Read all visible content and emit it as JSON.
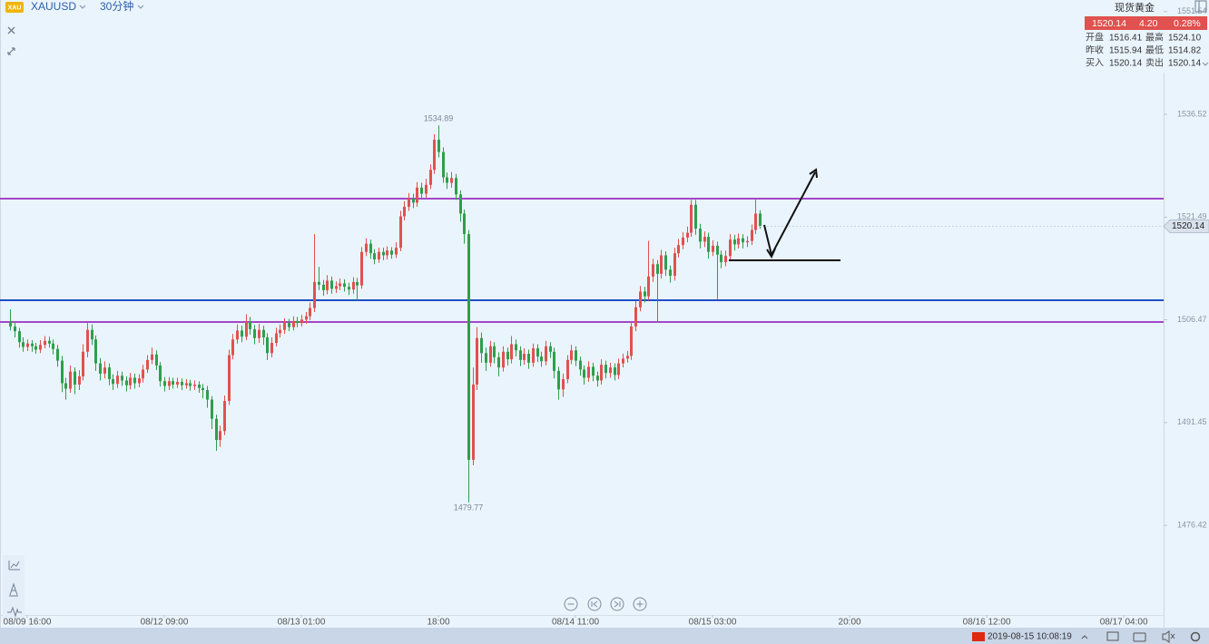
{
  "header": {
    "symbol": "XAUUSD",
    "interval": "30分钟"
  },
  "quote": {
    "name": "现货黄金",
    "price": "1520.14",
    "change": "4.20",
    "change_pct": "0.28%",
    "rows": [
      [
        "开盘",
        "1516.41",
        "最高",
        "1524.10"
      ],
      [
        "昨收",
        "1515.94",
        "最低",
        "1514.82"
      ],
      [
        "买入",
        "1520.14",
        "卖出",
        "1520.14"
      ]
    ]
  },
  "status": {
    "datetime": "2019-08-15 10:08:19"
  },
  "chart_data": {
    "type": "candlestick",
    "up_color": "#e0514f",
    "down_color": "#2e9f4c",
    "open": [
      1506.0,
      1505.5,
      1504.8,
      1503.2,
      1502.5,
      1503.0,
      1502.6,
      1502.1,
      1502.8,
      1503.4,
      1503.0,
      1502.2,
      1500.5,
      1497.2,
      1496.4,
      1498.9,
      1497.0,
      1498.2,
      1501.8,
      1505.0,
      1503.6,
      1500.1,
      1498.6,
      1499.5,
      1497.8,
      1497.1,
      1498.3,
      1497.6,
      1496.9,
      1498.0,
      1497.2,
      1497.9,
      1499.2,
      1500.6,
      1501.4,
      1499.8,
      1497.5,
      1496.8,
      1497.5,
      1497.0,
      1497.4,
      1496.9,
      1497.2,
      1496.8,
      1497.0,
      1496.5,
      1496.2,
      1494.8,
      1492.0,
      1488.9,
      1490.2,
      1494.6,
      1501.3,
      1503.6,
      1504.9,
      1504.0,
      1506.2,
      1505.1,
      1503.8,
      1505.0,
      1503.9,
      1501.6,
      1503.1,
      1504.5,
      1505.0,
      1506.0,
      1505.4,
      1506.3,
      1506.0,
      1506.5,
      1507.0,
      1508.2,
      1512.0,
      1511.6,
      1510.8,
      1512.2,
      1511.0,
      1511.4,
      1511.8,
      1511.3,
      1510.9,
      1512.0,
      1511.5,
      1516.4,
      1517.6,
      1516.2,
      1515.3,
      1516.4,
      1515.9,
      1516.6,
      1516.0,
      1517.0,
      1521.6,
      1523.0,
      1524.2,
      1523.6,
      1525.8,
      1524.9,
      1526.2,
      1528.4,
      1532.8,
      1531.0,
      1527.3,
      1526.5,
      1527.2,
      1524.8,
      1522.0,
      1519.0,
      1486.0,
      1497.0,
      1503.8,
      1501.6,
      1500.2,
      1502.6,
      1501.0,
      1499.5,
      1501.8,
      1500.7,
      1502.9,
      1502.0,
      1500.6,
      1501.5,
      1500.2,
      1502.3,
      1501.1,
      1500.4,
      1502.6,
      1501.8,
      1499.0,
      1496.3,
      1497.8,
      1500.6,
      1502.0,
      1500.5,
      1499.2,
      1498.0,
      1499.6,
      1498.3,
      1497.6,
      1499.9,
      1498.7,
      1499.5,
      1498.4,
      1500.1,
      1500.8,
      1501.2,
      1505.5,
      1508.3,
      1510.6,
      1509.9,
      1512.8,
      1514.6,
      1513.2,
      1515.9,
      1513.8,
      1512.9,
      1516.2,
      1517.4,
      1518.5,
      1519.2,
      1523.3,
      1519.8,
      1517.9,
      1518.6,
      1516.4,
      1517.3,
      1516.0,
      1514.9,
      1515.8,
      1518.2,
      1517.5,
      1518.4,
      1517.8,
      1518.0,
      1519.6,
      1522.0
    ],
    "high": [
      1508.0,
      1506.1,
      1505.3,
      1503.9,
      1503.6,
      1503.5,
      1503.1,
      1503.5,
      1504.1,
      1504.0,
      1503.6,
      1502.8,
      1501.2,
      1498.0,
      1499.8,
      1499.5,
      1499.1,
      1502.9,
      1506.0,
      1505.8,
      1504.2,
      1500.9,
      1500.4,
      1500.1,
      1498.5,
      1499.0,
      1498.9,
      1498.2,
      1498.7,
      1498.6,
      1498.5,
      1499.9,
      1501.3,
      1502.4,
      1502.0,
      1500.3,
      1498.1,
      1498.1,
      1498.0,
      1498.0,
      1497.9,
      1497.8,
      1497.7,
      1497.6,
      1497.5,
      1497.1,
      1496.8,
      1495.3,
      1492.6,
      1491.0,
      1495.4,
      1502.1,
      1504.4,
      1505.8,
      1505.6,
      1507.3,
      1506.9,
      1505.7,
      1505.9,
      1505.6,
      1504.5,
      1503.9,
      1505.3,
      1505.8,
      1506.7,
      1506.6,
      1507.0,
      1506.9,
      1507.2,
      1507.6,
      1509.0,
      1519.0,
      1514.2,
      1512.3,
      1513.0,
      1512.8,
      1512.1,
      1512.5,
      1512.4,
      1511.9,
      1512.7,
      1512.6,
      1517.1,
      1518.4,
      1518.2,
      1516.8,
      1517.0,
      1517.0,
      1517.2,
      1517.1,
      1517.8,
      1522.4,
      1523.8,
      1525.0,
      1524.9,
      1526.6,
      1526.5,
      1527.1,
      1529.2,
      1533.6,
      1534.89,
      1531.7,
      1528.0,
      1528.1,
      1527.8,
      1525.4,
      1522.6,
      1519.6,
      1499.5,
      1505.4,
      1504.6,
      1502.4,
      1503.4,
      1503.2,
      1501.7,
      1502.6,
      1502.4,
      1504.1,
      1503.6,
      1502.6,
      1502.3,
      1502.1,
      1503.0,
      1502.9,
      1501.8,
      1503.4,
      1503.2,
      1502.4,
      1499.6,
      1498.6,
      1501.3,
      1502.8,
      1502.6,
      1501.1,
      1499.8,
      1500.4,
      1500.2,
      1498.9,
      1500.7,
      1500.5,
      1500.2,
      1500.1,
      1500.8,
      1501.5,
      1501.9,
      1506.3,
      1509.2,
      1511.4,
      1511.3,
      1518.0,
      1515.4,
      1515.2,
      1516.7,
      1516.5,
      1514.4,
      1517.0,
      1518.3,
      1519.3,
      1520.1,
      1524.0,
      1524.0,
      1520.5,
      1519.4,
      1519.2,
      1518.1,
      1517.9,
      1516.6,
      1516.6,
      1519.0,
      1518.9,
      1519.1,
      1519.0,
      1518.7,
      1520.4,
      1524.1,
      1522.5
    ],
    "low": [
      1504.9,
      1503.9,
      1502.4,
      1501.8,
      1501.9,
      1501.8,
      1501.5,
      1501.6,
      1502.3,
      1502.4,
      1501.4,
      1499.6,
      1495.9,
      1494.8,
      1495.8,
      1495.6,
      1496.2,
      1497.6,
      1501.0,
      1502.8,
      1499.0,
      1497.6,
      1497.9,
      1496.9,
      1496.2,
      1496.5,
      1496.8,
      1496.0,
      1496.3,
      1496.4,
      1496.6,
      1497.3,
      1498.7,
      1500.0,
      1499.1,
      1496.7,
      1496.0,
      1496.2,
      1496.4,
      1496.5,
      1496.2,
      1496.4,
      1496.1,
      1496.2,
      1495.8,
      1495.0,
      1493.6,
      1490.5,
      1487.3,
      1487.9,
      1489.6,
      1494.0,
      1500.7,
      1503.0,
      1503.2,
      1503.5,
      1504.3,
      1502.9,
      1503.1,
      1502.8,
      1500.6,
      1501.0,
      1502.6,
      1503.9,
      1504.4,
      1504.8,
      1504.9,
      1505.4,
      1505.5,
      1505.9,
      1506.4,
      1507.6,
      1510.8,
      1510.0,
      1510.2,
      1510.3,
      1510.4,
      1510.8,
      1510.6,
      1510.1,
      1510.3,
      1509.3,
      1511.0,
      1515.8,
      1515.4,
      1514.6,
      1514.8,
      1515.2,
      1515.3,
      1515.4,
      1515.5,
      1516.5,
      1521.0,
      1522.4,
      1522.8,
      1523.0,
      1524.1,
      1524.3,
      1525.6,
      1527.8,
      1530.2,
      1526.5,
      1525.6,
      1525.8,
      1524.0,
      1520.8,
      1517.6,
      1479.77,
      1485.2,
      1496.2,
      1500.2,
      1499.0,
      1499.6,
      1500.1,
      1498.2,
      1498.9,
      1499.8,
      1500.1,
      1501.1,
      1499.7,
      1499.9,
      1499.3,
      1499.6,
      1500.3,
      1499.6,
      1499.8,
      1500.9,
      1497.9,
      1494.8,
      1495.2,
      1497.2,
      1500.0,
      1499.7,
      1498.3,
      1497.0,
      1497.4,
      1497.5,
      1496.7,
      1497.0,
      1497.9,
      1498.0,
      1497.6,
      1497.8,
      1499.5,
      1500.2,
      1500.6,
      1504.8,
      1507.7,
      1509.0,
      1509.3,
      1512.0,
      1506.2,
      1512.5,
      1512.9,
      1511.9,
      1512.2,
      1515.6,
      1516.8,
      1517.8,
      1518.6,
      1518.9,
      1516.9,
      1517.1,
      1515.4,
      1515.8,
      1509.5,
      1514.0,
      1514.3,
      1515.2,
      1516.6,
      1516.9,
      1516.9,
      1517.1,
      1517.4,
      1519.0,
      1519.8
    ],
    "close": [
      1505.5,
      1504.8,
      1503.2,
      1502.5,
      1503.0,
      1502.6,
      1502.1,
      1502.8,
      1503.4,
      1503.0,
      1502.2,
      1500.5,
      1497.2,
      1496.4,
      1498.9,
      1497.0,
      1498.2,
      1501.8,
      1505.0,
      1503.6,
      1500.1,
      1498.6,
      1499.5,
      1497.8,
      1497.1,
      1498.3,
      1497.6,
      1496.9,
      1498.0,
      1497.2,
      1497.9,
      1499.2,
      1500.6,
      1501.4,
      1499.8,
      1497.5,
      1496.8,
      1497.5,
      1497.0,
      1497.4,
      1496.9,
      1497.2,
      1496.8,
      1497.0,
      1496.5,
      1496.2,
      1494.8,
      1492.0,
      1488.9,
      1490.2,
      1494.6,
      1501.3,
      1503.6,
      1504.9,
      1504.0,
      1506.2,
      1505.1,
      1503.8,
      1505.0,
      1503.9,
      1501.6,
      1503.1,
      1504.5,
      1505.0,
      1506.0,
      1505.4,
      1506.3,
      1506.0,
      1506.5,
      1507.0,
      1508.2,
      1512.0,
      1511.6,
      1510.8,
      1512.2,
      1511.0,
      1511.4,
      1511.8,
      1511.3,
      1510.9,
      1512.0,
      1511.5,
      1516.4,
      1517.6,
      1516.2,
      1515.3,
      1516.4,
      1515.9,
      1516.6,
      1516.0,
      1517.0,
      1521.6,
      1523.0,
      1524.2,
      1523.6,
      1525.8,
      1524.9,
      1526.2,
      1528.4,
      1532.8,
      1531.0,
      1527.3,
      1526.5,
      1527.2,
      1524.8,
      1522.0,
      1519.0,
      1486.0,
      1497.0,
      1503.8,
      1501.6,
      1500.2,
      1502.6,
      1501.0,
      1499.5,
      1501.8,
      1500.7,
      1502.9,
      1502.0,
      1500.6,
      1501.5,
      1500.2,
      1502.3,
      1501.1,
      1500.4,
      1502.6,
      1501.8,
      1499.0,
      1496.3,
      1497.8,
      1500.6,
      1502.0,
      1500.5,
      1499.2,
      1498.0,
      1499.6,
      1498.3,
      1497.6,
      1499.9,
      1498.7,
      1499.5,
      1498.4,
      1500.1,
      1500.8,
      1501.2,
      1505.5,
      1508.3,
      1510.6,
      1509.9,
      1512.8,
      1514.6,
      1513.2,
      1515.9,
      1513.8,
      1512.9,
      1516.2,
      1517.4,
      1518.5,
      1519.2,
      1523.3,
      1519.8,
      1517.9,
      1518.6,
      1516.4,
      1517.3,
      1516.0,
      1514.9,
      1515.8,
      1518.2,
      1517.5,
      1518.4,
      1517.8,
      1518.0,
      1519.6,
      1522.0,
      1520.14
    ],
    "ylim": [
      1461.72,
      1553.23
    ],
    "yticks": [
      1551.54,
      1536.52,
      1521.49,
      1506.47,
      1491.45,
      1476.42
    ],
    "xlim": [
      -2.35,
      269.3
    ],
    "xticks": [
      {
        "value": 4,
        "label": "08/09 16:00"
      },
      {
        "value": 36,
        "label": "08/12 09:00"
      },
      {
        "value": 68,
        "label": "08/13 01:00"
      },
      {
        "value": 100,
        "label": "18:00"
      },
      {
        "value": 132,
        "label": "08/14 11:00"
      },
      {
        "value": 164,
        "label": "08/15 03:00"
      },
      {
        "value": 196,
        "label": "20:00"
      },
      {
        "value": 228,
        "label": "08/16 12:00"
      },
      {
        "value": 260,
        "label": "08/17 04:00"
      }
    ]
  }
}
